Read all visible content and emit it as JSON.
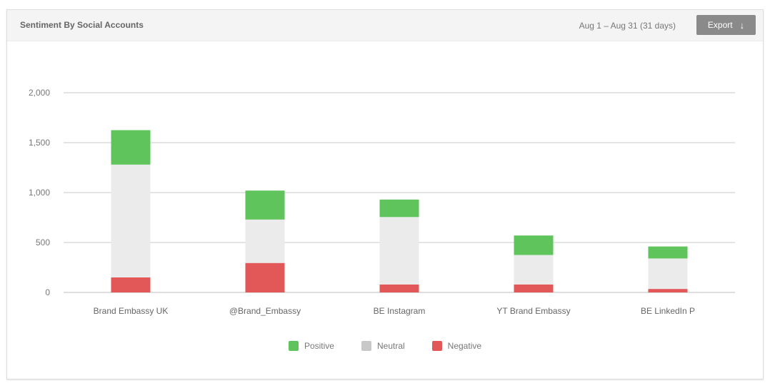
{
  "header": {
    "title": "Sentiment By Social Accounts",
    "date_range": "Aug 1 – Aug 31 (31 days)",
    "export_label": "Export",
    "export_icon": "arrow-down-icon"
  },
  "colors": {
    "positive": "#5ec45b",
    "neutral": "#ebebeb",
    "negative": "#e25757",
    "neutral_swatch": "#c8c8c8",
    "grid": "#c9c9c9",
    "axis": "#bdbdbd"
  },
  "chart_data": {
    "type": "bar",
    "stacked": true,
    "categories": [
      "Brand Embassy UK",
      "@Brand_Embassy",
      "BE Instagram",
      "YT Brand Embassy",
      "BE LinkedIn P"
    ],
    "series": [
      {
        "name": "Negative",
        "values": [
          150,
          295,
          80,
          80,
          35
        ]
      },
      {
        "name": "Neutral",
        "values": [
          1130,
          435,
          675,
          295,
          305
        ]
      },
      {
        "name": "Positive",
        "values": [
          345,
          290,
          175,
          195,
          120
        ]
      }
    ],
    "y_ticks": [
      0,
      500,
      1000,
      1500,
      2000
    ],
    "y_tick_labels": [
      "0",
      "500",
      "1,000",
      "1,500",
      "2,000"
    ],
    "ylim": [
      0,
      2000
    ],
    "grid": true,
    "legend_position": "bottom-center",
    "legend": [
      "Positive",
      "Neutral",
      "Negative"
    ]
  }
}
